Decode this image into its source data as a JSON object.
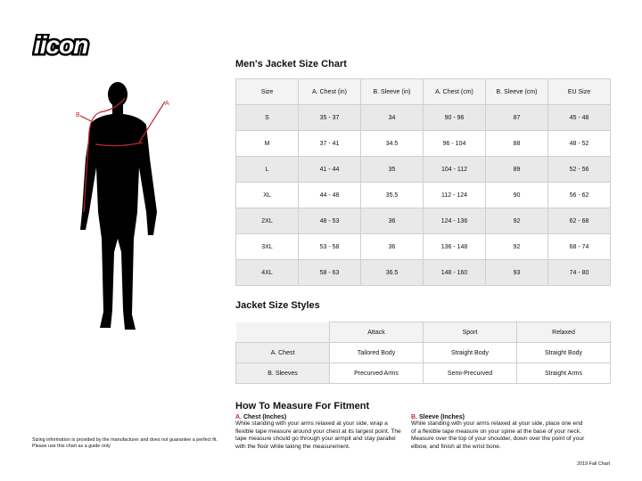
{
  "logo": {
    "text": "ICON"
  },
  "figure": {
    "label_a": "A",
    "label_b": "B",
    "accent": "#c0272d"
  },
  "size_chart": {
    "title": "Men's Jacket Size Chart",
    "headers": [
      "Size",
      "A. Chest (in)",
      "B. Sleeve (in)",
      "A. Chest (cm)",
      "B. Sleeve (cm)",
      "EU Size"
    ],
    "rows": [
      [
        "S",
        "35 - 37",
        "34",
        "90 - 96",
        "87",
        "45 - 48"
      ],
      [
        "M",
        "37 - 41",
        "34.5",
        "96 - 104",
        "88",
        "48 - 52"
      ],
      [
        "L",
        "41 - 44",
        "35",
        "104 - 112",
        "89",
        "52 - 56"
      ],
      [
        "XL",
        "44 - 48",
        "35.5",
        "112 - 124",
        "90",
        "56 - 62"
      ],
      [
        "2XL",
        "48 - 53",
        "36",
        "124 - 136",
        "92",
        "62 - 68"
      ],
      [
        "3XL",
        "53 - 58",
        "36",
        "136 - 148",
        "92",
        "68 - 74"
      ],
      [
        "4XL",
        "58 - 63",
        "36.5",
        "148 - 160",
        "93",
        "74 - 80"
      ]
    ]
  },
  "styles": {
    "title": "Jacket Size Styles",
    "headers": [
      "Attack",
      "Sport",
      "Relaxed"
    ],
    "rows": [
      {
        "label": "A. Chest",
        "values": [
          "Tailored Body",
          "Straight Body",
          "Straight Body"
        ]
      },
      {
        "label": "B. Sleeves",
        "values": [
          "Precurved Arms",
          "Semi-Precurved",
          "Straight Arms"
        ]
      }
    ]
  },
  "measure": {
    "title": "How To Measure For Fitment",
    "chest": {
      "letter": "A.",
      "heading": "Chest (Inches)",
      "text": "While standing with your arms relaxed at your side, wrap a flexible tape measure around your chest at its largest point. The tape measure should go through your armpit and stay parallel with the floor while taking the measurement."
    },
    "sleeve": {
      "letter": "B.",
      "heading": "Sleeve (Inches)",
      "text": "While standing with your arms relaxed at your side, place one end of a flexible tape measure on your spine at the base of your neck. Measure over the top of your shoulder, down over the point of your elbow, and finish at the wrist bone."
    }
  },
  "footer": {
    "disclaimer_1": "Sizing information is provided by the manufacturer and does not guarantee a perfect fit.",
    "disclaimer_2": "Please use this chart as a guide only",
    "chart_version": "2019 Fall Chart"
  }
}
